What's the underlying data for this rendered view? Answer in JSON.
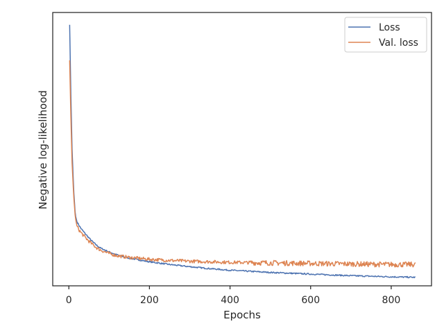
{
  "chart_data": {
    "type": "line",
    "title": "",
    "xlabel": "Epochs",
    "ylabel": "Negative log-likelihood",
    "xlim": [
      -40,
      900
    ],
    "ylim": [
      0,
      1
    ],
    "x_ticks": [
      0,
      200,
      400,
      600,
      800
    ],
    "y_ticks": [],
    "grid": false,
    "legend_position": "top-right",
    "series": [
      {
        "name": "Loss",
        "color": "#4c72b0",
        "x": [
          2,
          5,
          8,
          12,
          16,
          20,
          25,
          30,
          40,
          50,
          60,
          70,
          80,
          100,
          120,
          150,
          200,
          250,
          300,
          350,
          400,
          450,
          500,
          550,
          600,
          650,
          700,
          750,
          800,
          830,
          860
        ],
        "y": [
          0.955,
          0.7,
          0.5,
          0.35,
          0.26,
          0.235,
          0.222,
          0.21,
          0.192,
          0.175,
          0.16,
          0.147,
          0.137,
          0.124,
          0.113,
          0.101,
          0.088,
          0.078,
          0.07,
          0.063,
          0.057,
          0.053,
          0.049,
          0.046,
          0.043,
          0.04,
          0.037,
          0.035,
          0.033,
          0.032,
          0.031
        ]
      },
      {
        "name": "Val. loss",
        "color": "#dd8452",
        "x": [
          2,
          5,
          8,
          12,
          16,
          20,
          25,
          30,
          40,
          50,
          60,
          70,
          80,
          100,
          120,
          150,
          200,
          250,
          300,
          350,
          400,
          450,
          500,
          550,
          600,
          650,
          700,
          750,
          800,
          830,
          860
        ],
        "y": [
          0.825,
          0.62,
          0.45,
          0.33,
          0.25,
          0.22,
          0.205,
          0.195,
          0.178,
          0.163,
          0.15,
          0.138,
          0.13,
          0.118,
          0.11,
          0.104,
          0.097,
          0.093,
          0.09,
          0.088,
          0.086,
          0.085,
          0.084,
          0.083,
          0.082,
          0.081,
          0.08,
          0.079,
          0.078,
          0.078,
          0.078
        ]
      }
    ]
  }
}
